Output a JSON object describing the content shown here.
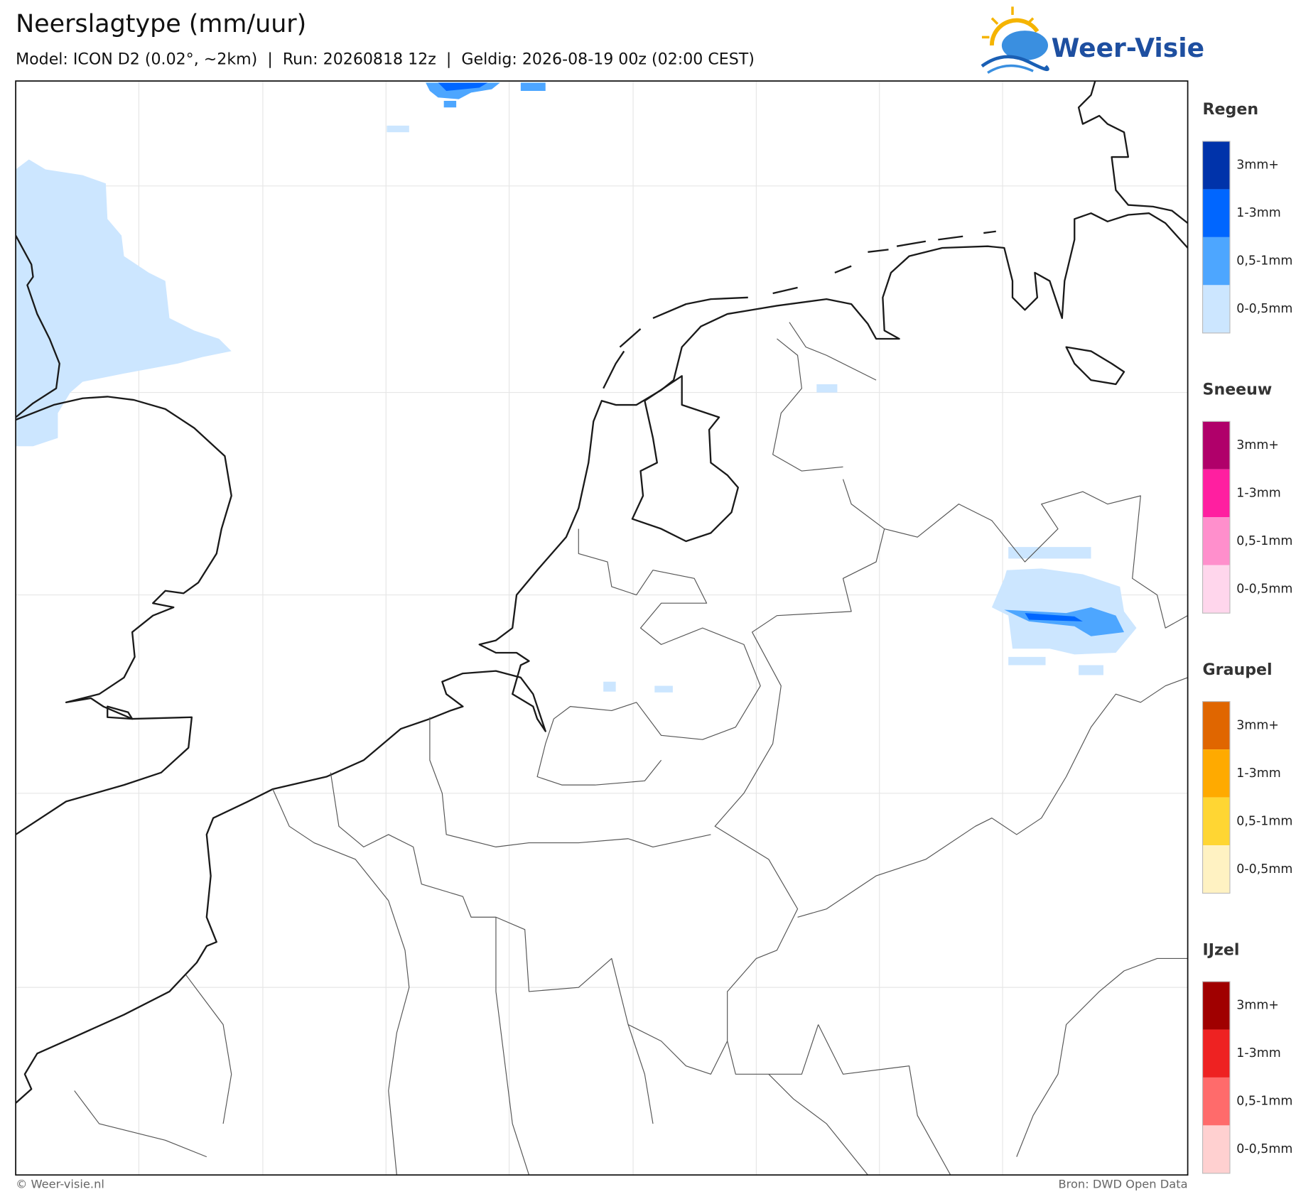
{
  "header": {
    "title": "Neerslagtype (mm/uur)",
    "subtitle": "Model: ICON D2 (0.02°, ~2km)  |  Run: 20260818 12z  |  Geldig: 2026-08-19 00z (02:00 CEST)"
  },
  "logo": {
    "text": "Weer-Visie"
  },
  "legend": [
    {
      "title": "Regen",
      "items": [
        {
          "label": "3mm+",
          "color": "#0033aa"
        },
        {
          "label": "1-3mm",
          "color": "#0066ff"
        },
        {
          "label": "0,5-1mm",
          "color": "#4da6ff"
        },
        {
          "label": "0-0,5mm",
          "color": "#cce6ff"
        }
      ]
    },
    {
      "title": "Sneeuw",
      "items": [
        {
          "label": "3mm+",
          "color": "#b0006a"
        },
        {
          "label": "1-3mm",
          "color": "#ff1fa0"
        },
        {
          "label": "0,5-1mm",
          "color": "#ff8fcc"
        },
        {
          "label": "0-0,5mm",
          "color": "#ffd6ec"
        }
      ]
    },
    {
      "title": "Graupel",
      "items": [
        {
          "label": "3mm+",
          "color": "#e06600"
        },
        {
          "label": "1-3mm",
          "color": "#ffaa00"
        },
        {
          "label": "0,5-1mm",
          "color": "#ffd633"
        },
        {
          "label": "0-0,5mm",
          "color": "#fff2c2"
        }
      ]
    },
    {
      "title": "IJzel",
      "items": [
        {
          "label": "3mm+",
          "color": "#a00000"
        },
        {
          "label": "1-3mm",
          "color": "#ee2222"
        },
        {
          "label": "0,5-1mm",
          "color": "#ff6b6b"
        },
        {
          "label": "0-0,5mm",
          "color": "#ffd0d0"
        }
      ]
    }
  ],
  "footer": {
    "left": "© Weer-visie.nl",
    "right": "Bron: DWD Open Data"
  }
}
